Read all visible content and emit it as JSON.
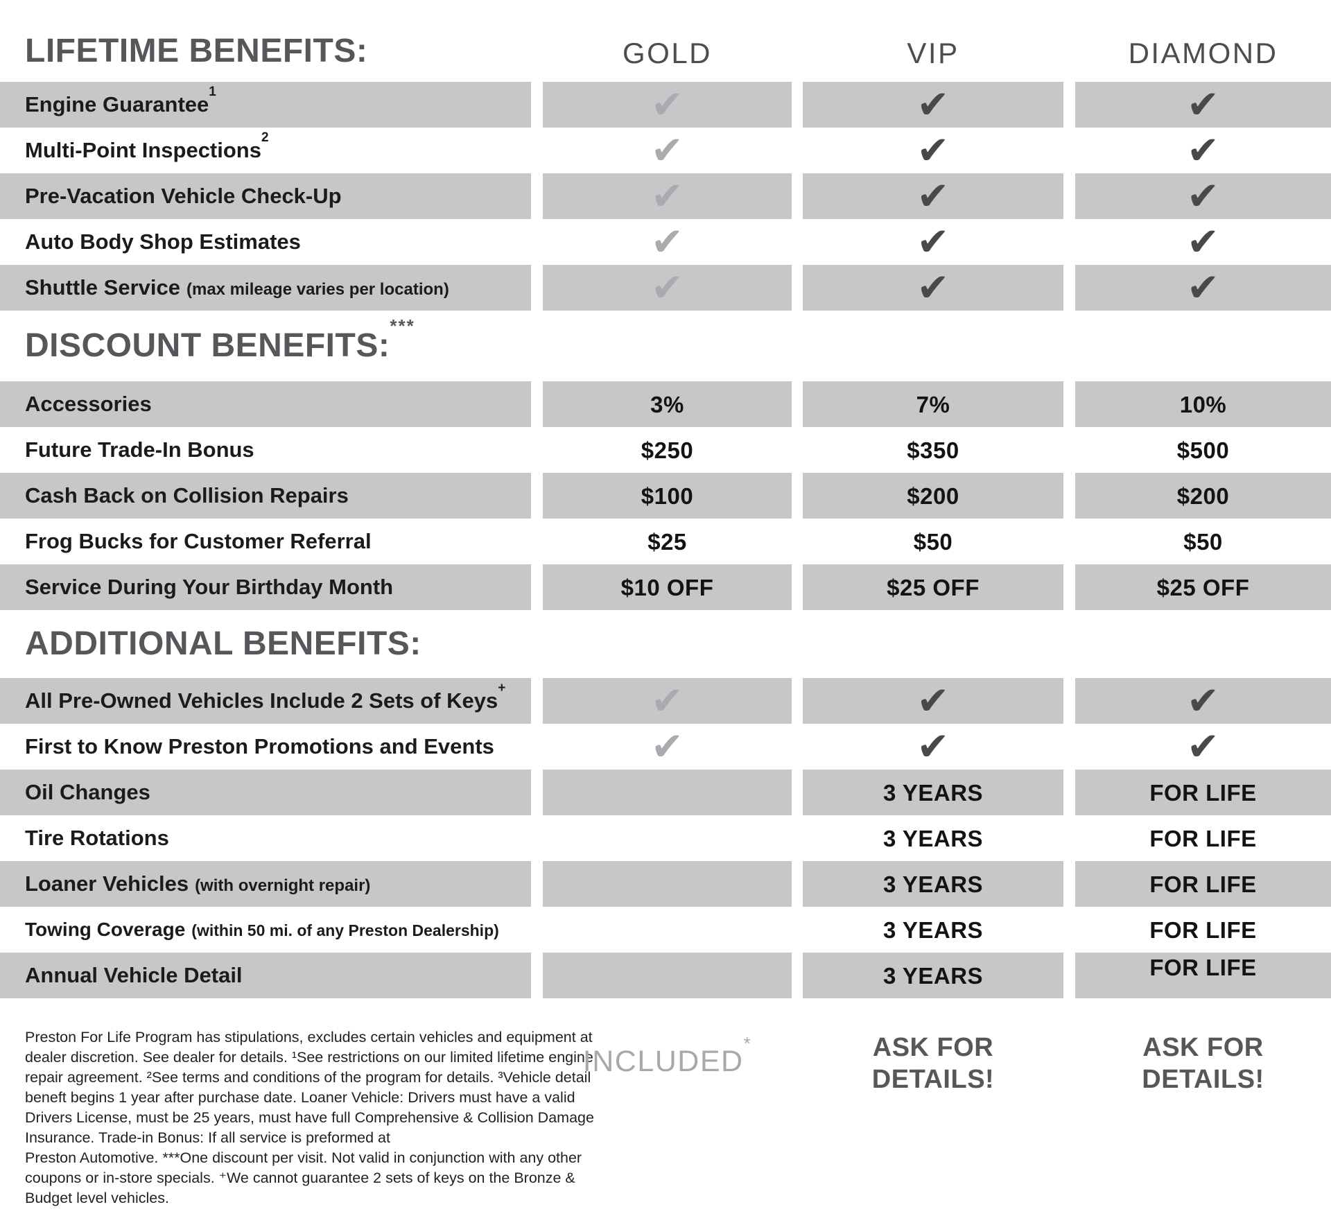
{
  "columns": [
    "GOLD",
    "VIP",
    "DIAMOND"
  ],
  "colors": {
    "band_gray": "#c6c7c8",
    "check_light": "#a9abae",
    "check_dark": "#48494b",
    "heading_gray": "#56575a",
    "included_gray": "#a6a8ab",
    "text_black": "#231f20"
  },
  "sections": [
    {
      "title": "LIFETIME BENEFITS:",
      "sup": "",
      "rows": [
        {
          "label": "Engine Guarantee",
          "sup": "1",
          "cells": [
            {
              "check": "light"
            },
            {
              "check": "dark"
            },
            {
              "check": "dark"
            }
          ]
        },
        {
          "label": "Multi-Point Inspections",
          "sup": "2",
          "cells": [
            {
              "check": "light"
            },
            {
              "check": "dark"
            },
            {
              "check": "dark"
            }
          ]
        },
        {
          "label": "Pre-Vacation Vehicle Check-Up",
          "cells": [
            {
              "check": "light"
            },
            {
              "check": "dark"
            },
            {
              "check": "dark"
            }
          ]
        },
        {
          "label": "Auto Body Shop Estimates",
          "cells": [
            {
              "check": "light"
            },
            {
              "check": "dark"
            },
            {
              "check": "dark"
            }
          ]
        },
        {
          "label": "Shuttle Service",
          "paren": "(max mileage varies per location)",
          "cells": [
            {
              "check": "light"
            },
            {
              "check": "dark"
            },
            {
              "check": "dark"
            }
          ]
        }
      ]
    },
    {
      "title": "DISCOUNT BENEFITS:",
      "sup": "***",
      "rows": [
        {
          "label": "Accessories",
          "cells": [
            {
              "text": "3%"
            },
            {
              "text": "7%"
            },
            {
              "text": "10%"
            }
          ]
        },
        {
          "label": "Future Trade-In Bonus",
          "cells": [
            {
              "text": "$250"
            },
            {
              "text": "$350"
            },
            {
              "text": "$500"
            }
          ]
        },
        {
          "label": "Cash Back on Collision Repairs",
          "cells": [
            {
              "text": "$100"
            },
            {
              "text": "$200"
            },
            {
              "text": "$200"
            }
          ]
        },
        {
          "label": "Frog Bucks for Customer Referral",
          "cells": [
            {
              "text": "$25"
            },
            {
              "text": "$50"
            },
            {
              "text": "$50"
            }
          ]
        },
        {
          "label": "Service During Your Birthday Month",
          "cells": [
            {
              "text": "$10 OFF"
            },
            {
              "text": "$25 OFF"
            },
            {
              "text": "$25 OFF"
            }
          ]
        }
      ]
    },
    {
      "title": "ADDITIONAL BENEFITS:",
      "sup": "",
      "rows": [
        {
          "label": "All Pre-Owned Vehicles Include 2 Sets of Keys",
          "sup": "+",
          "cells": [
            {
              "check": "light"
            },
            {
              "check": "dark"
            },
            {
              "check": "dark"
            }
          ]
        },
        {
          "label": "First to Know Preston Promotions and Events",
          "cells": [
            {
              "check": "light"
            },
            {
              "check": "dark"
            },
            {
              "check": "dark"
            }
          ]
        },
        {
          "label": "Oil Changes",
          "cells": [
            {
              "text": ""
            },
            {
              "text": "3 YEARS"
            },
            {
              "text": "FOR LIFE"
            }
          ]
        },
        {
          "label": "Tire Rotations",
          "cells": [
            {
              "text": ""
            },
            {
              "text": "3 YEARS"
            },
            {
              "text": "FOR LIFE"
            }
          ]
        },
        {
          "label": "Loaner Vehicles",
          "paren": "(with overnight repair)",
          "cells": [
            {
              "text": ""
            },
            {
              "text": "3 YEARS"
            },
            {
              "text": "FOR LIFE"
            }
          ]
        },
        {
          "label": "Towing Coverage",
          "paren": "(within 50 mi. of any Preston Dealership)",
          "cells": [
            {
              "text": ""
            },
            {
              "text": "3 YEARS"
            },
            {
              "text": "FOR LIFE"
            }
          ]
        },
        {
          "label": "Annual Vehicle Detail",
          "cells": [
            {
              "text": ""
            },
            {
              "text": "3 YEARS"
            },
            {
              "text": "FOR LIFE"
            }
          ]
        }
      ]
    }
  ],
  "footer": {
    "fine_print_lines": [
      "Preston For Life Program has stipulations, excludes certain vehicles and equipment at",
      "dealer discretion. See dealer for details. ¹See restrictions on our limited lifetime engine",
      "repair agreement. ²See terms and conditions of the program for details. ³Vehicle detail",
      "beneft begins 1 year after purchase date. Loaner Vehicle: Drivers must have a valid",
      "Drivers License, must be 25 years, must have full Comprehensive & Collision Damage",
      "Insurance. Trade-in Bonus: If all service is preformed at",
      "Preston Automotive. ***One discount per visit. Not valid in conjunction with any other",
      "coupons or in-store specials. ⁺We cannot guarantee 2 sets of keys on the Bronze &",
      "Budget level vehicles."
    ],
    "notes": {
      "gold": {
        "text": "INCLUDED",
        "sup": "*"
      },
      "vip": [
        "ASK FOR",
        "DETAILS!"
      ],
      "diamond": [
        "ASK FOR",
        "DETAILS!"
      ]
    }
  }
}
